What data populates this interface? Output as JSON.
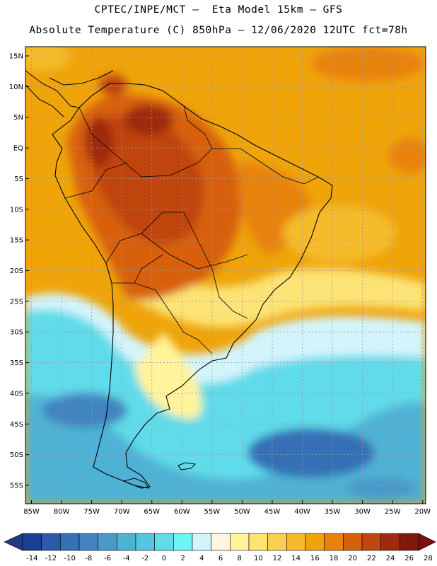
{
  "header": {
    "line1": "CPTEC/INPE/MCT –  Eta Model 15km – GFS",
    "line2": "Absolute Temperature (C) 850hPa – 12/06/2020 12UTC fct=78h"
  },
  "map": {
    "lat_labels": [
      "15N",
      "10N",
      "5N",
      "EQ",
      "5S",
      "10S",
      "15S",
      "20S",
      "25S",
      "30S",
      "35S",
      "40S",
      "45S",
      "50S",
      "55S"
    ],
    "lon_labels": [
      "85W",
      "80W",
      "75W",
      "70W",
      "65W",
      "60W",
      "55W",
      "50W",
      "45W",
      "40W",
      "35W",
      "30W",
      "25W",
      "20W"
    ],
    "lat_values": [
      15,
      10,
      5,
      0,
      -5,
      -10,
      -15,
      -20,
      -25,
      -30,
      -35,
      -40,
      -45,
      -50,
      -55
    ],
    "lon_values": [
      -85,
      -80,
      -75,
      -70,
      -65,
      -60,
      -55,
      -50,
      -45,
      -40,
      -35,
      -30,
      -25,
      -20
    ],
    "extent": {
      "lon_min": -86,
      "lon_max": -19.5,
      "lat_min": -58,
      "lat_max": 16.5
    }
  },
  "colorbar": {
    "labels": [
      "-14",
      "-12",
      "-10",
      "-8",
      "-6",
      "-4",
      "-2",
      "0",
      "2",
      "4",
      "6",
      "8",
      "10",
      "12",
      "14",
      "16",
      "18",
      "20",
      "22",
      "24",
      "26",
      "28"
    ],
    "colors": [
      "#1b3f90",
      "#2a5aa8",
      "#3670b6",
      "#4384c0",
      "#4a99c9",
      "#4fb2d4",
      "#56c6e0",
      "#61dbea",
      "#6ff4f6",
      "#d3f4fb",
      "#fff6e0",
      "#fff49c",
      "#fce374",
      "#fbd052",
      "#f5bb2c",
      "#efa40a",
      "#e8830a",
      "#d8600a",
      "#c04510",
      "#9f2b0e",
      "#7e1a0c"
    ],
    "under_color": "#213b80",
    "over_color": "#7e0e12"
  }
}
